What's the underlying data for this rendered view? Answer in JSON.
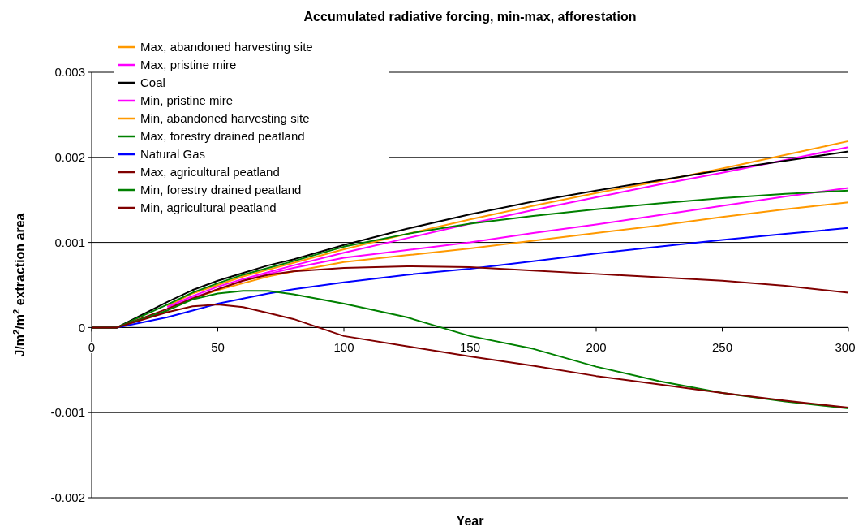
{
  "chart_data": {
    "type": "line",
    "title": "Accumulated radiative forcing, min-max, afforestation",
    "xlabel": "Year",
    "ylabel": "J/m$^{2}$/m$^{2}$ extraction area",
    "x": [
      0,
      10,
      30,
      40,
      50,
      60,
      70,
      80,
      100,
      125,
      150,
      175,
      200,
      225,
      250,
      275,
      300
    ],
    "xlim": [
      0,
      300
    ],
    "xticks": [
      0,
      50,
      100,
      150,
      200,
      250,
      300
    ],
    "ylim": [
      -0.002,
      0.003
    ],
    "yticks": [
      -0.002,
      -0.001,
      0,
      0.001,
      0.002,
      0.003
    ],
    "grid": "y",
    "legend": "top left",
    "marker": "none",
    "line_style": "solid",
    "series": [
      {
        "name": "Max, abandoned harvesting site",
        "color": "#ff9900",
        "values": [
          null,
          null,
          0.00025,
          0.0004,
          0.0005,
          0.0006,
          0.00068,
          0.00076,
          0.00092,
          0.0011,
          0.00127,
          0.00143,
          0.00158,
          0.00172,
          0.00187,
          0.00203,
          0.00219
        ]
      },
      {
        "name": "Max, pristine mire",
        "color": "#ff00ff",
        "values": [
          null,
          null,
          0.00024,
          0.00037,
          0.00048,
          0.00057,
          0.00065,
          0.00073,
          0.00088,
          0.00105,
          0.00122,
          0.00138,
          0.00153,
          0.00168,
          0.00182,
          0.00197,
          0.00212
        ]
      },
      {
        "name": "Coal",
        "color": "#000000",
        "values": [
          0,
          0,
          0.0003,
          0.00044,
          0.00055,
          0.00064,
          0.00073,
          0.0008,
          0.00097,
          0.00116,
          0.00133,
          0.00148,
          0.00161,
          0.00173,
          0.00185,
          0.00196,
          0.00207
        ]
      },
      {
        "name": "Min, pristine mire",
        "color": "#ff00ff",
        "values": [
          null,
          null,
          0.00022,
          0.00035,
          0.00045,
          0.00055,
          0.00063,
          0.0007,
          0.00082,
          0.00091,
          0.001,
          0.00111,
          0.00121,
          0.00132,
          0.00143,
          0.00154,
          0.00164
        ]
      },
      {
        "name": "Min, abandoned harvesting site",
        "color": "#ff9900",
        "values": [
          null,
          null,
          null,
          0.00034,
          0.00044,
          0.00052,
          0.0006,
          0.00066,
          0.00077,
          0.00085,
          0.00093,
          0.00102,
          0.00111,
          0.0012,
          0.0013,
          0.00139,
          0.00147
        ]
      },
      {
        "name": "Max, forestry drained peatland",
        "color": "#008000",
        "values": [
          0,
          0,
          0.00027,
          0.00041,
          0.00052,
          0.00062,
          0.0007,
          0.00078,
          0.00095,
          0.0011,
          0.00122,
          0.00131,
          0.00139,
          0.00146,
          0.00152,
          0.00157,
          0.00161
        ]
      },
      {
        "name": "Natural Gas",
        "color": "#0000ff",
        "values": [
          0,
          0,
          0.00012,
          0.0002,
          0.00028,
          0.00034,
          0.0004,
          0.00045,
          0.00053,
          0.00062,
          0.00069,
          0.00078,
          0.00087,
          0.00095,
          0.00103,
          0.0011,
          0.00117
        ]
      },
      {
        "name": "Max, agricultural peatland",
        "color": "#800000",
        "values": [
          0,
          0,
          0.00022,
          0.00034,
          0.00045,
          0.00055,
          0.00062,
          0.00066,
          0.0007,
          0.00072,
          0.00071,
          0.00067,
          0.00063,
          0.00059,
          0.00055,
          0.00049,
          0.00041
        ]
      },
      {
        "name": "Min, forestry drained peatland",
        "color": "#008000",
        "values": [
          0,
          0,
          0.0002,
          0.00033,
          0.0004,
          0.00043,
          0.00043,
          0.00039,
          0.00028,
          0.00012,
          -0.0001,
          -0.00025,
          -0.00046,
          -0.00063,
          -0.00077,
          -0.00087,
          -0.00095
        ]
      },
      {
        "name": "Min, agricultural peatland",
        "color": "#800000",
        "values": [
          0,
          0,
          0.00018,
          0.00025,
          0.00027,
          0.00024,
          0.00017,
          0.0001,
          -0.0001,
          -0.00022,
          -0.00034,
          -0.00045,
          -0.00057,
          -0.00067,
          -0.00077,
          -0.00086,
          -0.00094
        ]
      }
    ]
  }
}
